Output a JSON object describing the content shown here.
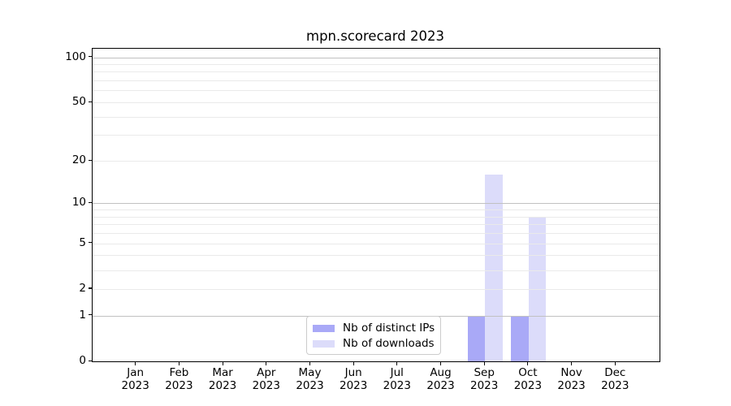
{
  "chart_data": {
    "type": "bar",
    "title": "mpn.scorecard 2023",
    "categories": [
      "Jan",
      "Feb",
      "Mar",
      "Apr",
      "May",
      "Jun",
      "Jul",
      "Aug",
      "Sep",
      "Oct",
      "Nov",
      "Dec"
    ],
    "x_year_label": "2023",
    "series": [
      {
        "name": "Nb of distinct IPs",
        "color": "#a9a9f7",
        "values": [
          0,
          0,
          0,
          0,
          0,
          0,
          0,
          0,
          1,
          1,
          0,
          0
        ]
      },
      {
        "name": "Nb of downloads",
        "color": "#dcdcfa",
        "values": [
          0,
          0,
          0,
          0,
          0,
          0,
          0,
          0,
          16,
          8,
          0,
          0
        ]
      }
    ],
    "yscale": "log1p",
    "ylim": [
      0,
      114
    ],
    "yticks": [
      100,
      50,
      20,
      10,
      5,
      2,
      1,
      0
    ],
    "grid": {
      "major": [
        1,
        10,
        100
      ],
      "minor": [
        2,
        3,
        4,
        5,
        6,
        7,
        8,
        9,
        20,
        30,
        40,
        50,
        60,
        70,
        80,
        90
      ],
      "major_color": "#c1c1c1",
      "minor_color": "#eaeaea"
    },
    "legend_position": "lower center",
    "axis_color": "#000000",
    "background": "#ffffff"
  }
}
